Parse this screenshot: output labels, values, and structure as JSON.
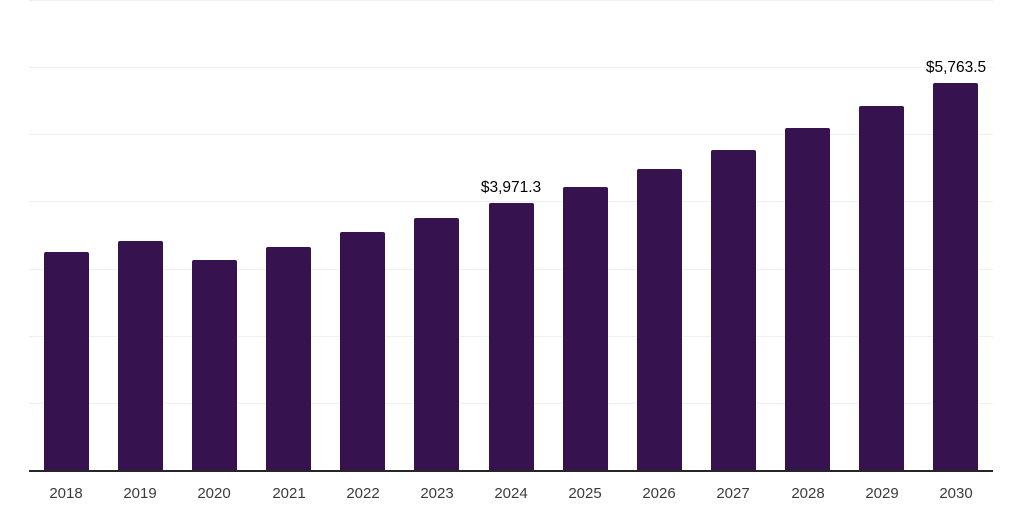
{
  "chart_data": {
    "type": "bar",
    "title": "",
    "xlabel": "",
    "ylabel": "",
    "categories": [
      "2018",
      "2019",
      "2020",
      "2021",
      "2022",
      "2023",
      "2024",
      "2025",
      "2026",
      "2027",
      "2028",
      "2029",
      "2030"
    ],
    "values": [
      3250,
      3405,
      3130,
      3320,
      3540,
      3750,
      3971.3,
      4215,
      4490,
      4760,
      5100,
      5420,
      5763.5
    ],
    "point_labels": [
      "",
      "",
      "",
      "",
      "",
      "",
      "$3,971.3",
      "",
      "",
      "",
      "",
      "",
      "$5,763.5"
    ],
    "ylim": [
      0,
      7000
    ],
    "gridline_step": 1000,
    "grid": "horizontal-only",
    "legend_position": "none",
    "colors": {
      "bar": "#36124E",
      "axis_line": "#262626",
      "gridline": "#f0f0f2",
      "tick_label": "#3c3c3c",
      "data_label": "#000000",
      "background": "#ffffff"
    }
  }
}
